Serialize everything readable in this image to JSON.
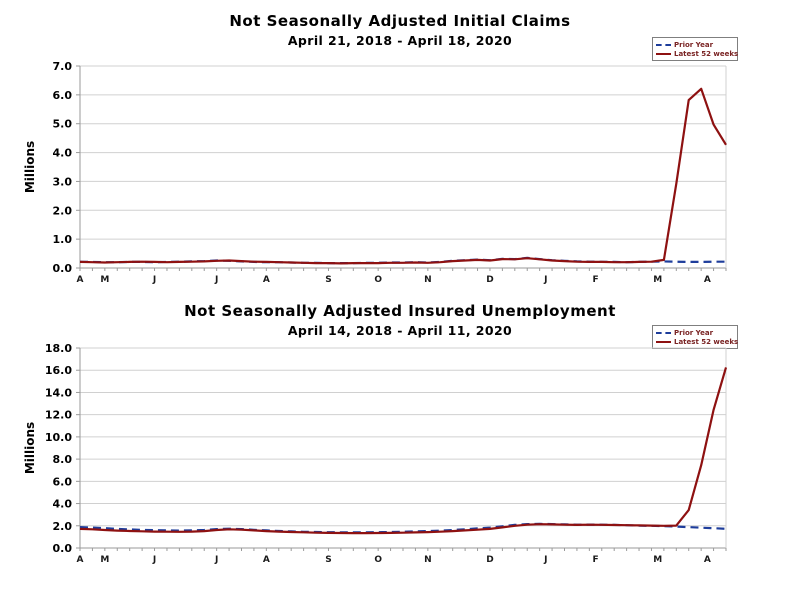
{
  "page": {
    "background": "#ffffff"
  },
  "colors": {
    "latest_line": "#8E1111",
    "prior_line": "#1E3D9B",
    "grid": "#d0d0d0",
    "axis": "#9a9a9a",
    "legend_text": "#7a2424"
  },
  "chart_data": [
    {
      "type": "line",
      "title": "Not Seasonally Adjusted Initial Claims",
      "subtitle": "April 21, 2018 - April 18, 2020",
      "ylabel": "Millions",
      "ylim": [
        0.0,
        7.0
      ],
      "ytick_step": 1.0,
      "grid": true,
      "legend_position": "top-right",
      "x_month_labels": [
        {
          "label": "A",
          "week": 0
        },
        {
          "label": "M",
          "week": 2
        },
        {
          "label": "J",
          "week": 6
        },
        {
          "label": "J",
          "week": 11
        },
        {
          "label": "A",
          "week": 15
        },
        {
          "label": "S",
          "week": 20
        },
        {
          "label": "O",
          "week": 24
        },
        {
          "label": "N",
          "week": 28
        },
        {
          "label": "D",
          "week": 33
        },
        {
          "label": "J",
          "week": 37.5
        },
        {
          "label": "F",
          "week": 41.5
        },
        {
          "label": "M",
          "week": 46.5
        },
        {
          "label": "A",
          "week": 50.5
        }
      ],
      "series": [
        {
          "name": "Prior Year",
          "style": "dashed",
          "color": "#1E3D9B",
          "values": [
            0.21,
            0.21,
            0.2,
            0.2,
            0.21,
            0.21,
            0.2,
            0.21,
            0.22,
            0.23,
            0.24,
            0.26,
            0.25,
            0.23,
            0.21,
            0.2,
            0.2,
            0.19,
            0.18,
            0.18,
            0.17,
            0.17,
            0.17,
            0.18,
            0.18,
            0.19,
            0.19,
            0.2,
            0.19,
            0.21,
            0.25,
            0.27,
            0.29,
            0.27,
            0.32,
            0.31,
            0.35,
            0.31,
            0.27,
            0.25,
            0.23,
            0.22,
            0.21,
            0.21,
            0.2,
            0.21,
            0.22,
            0.23,
            0.22,
            0.21,
            0.21,
            0.22,
            0.22
          ]
        },
        {
          "name": "Latest 52 weeks",
          "style": "solid",
          "color": "#8E1111",
          "values": [
            0.21,
            0.2,
            0.19,
            0.2,
            0.21,
            0.22,
            0.21,
            0.2,
            0.21,
            0.22,
            0.23,
            0.25,
            0.26,
            0.24,
            0.22,
            0.21,
            0.2,
            0.19,
            0.18,
            0.17,
            0.17,
            0.16,
            0.17,
            0.17,
            0.17,
            0.18,
            0.18,
            0.19,
            0.18,
            0.2,
            0.24,
            0.26,
            0.28,
            0.26,
            0.31,
            0.3,
            0.34,
            0.3,
            0.26,
            0.24,
            0.22,
            0.21,
            0.21,
            0.2,
            0.2,
            0.21,
            0.22,
            0.28,
            2.92,
            5.82,
            6.21,
            4.97,
            4.27
          ]
        }
      ]
    },
    {
      "type": "line",
      "title": "Not Seasonally Adjusted Insured Unemployment",
      "subtitle": "April 14, 2018 - April 11, 2020",
      "ylabel": "Millions",
      "ylim": [
        0.0,
        18.0
      ],
      "ytick_step": 2.0,
      "grid": true,
      "legend_position": "top-right",
      "x_month_labels": [
        {
          "label": "A",
          "week": 0
        },
        {
          "label": "M",
          "week": 2
        },
        {
          "label": "J",
          "week": 6
        },
        {
          "label": "J",
          "week": 11
        },
        {
          "label": "A",
          "week": 15
        },
        {
          "label": "S",
          "week": 20
        },
        {
          "label": "O",
          "week": 24
        },
        {
          "label": "N",
          "week": 28
        },
        {
          "label": "D",
          "week": 33
        },
        {
          "label": "J",
          "week": 37.5
        },
        {
          "label": "F",
          "week": 41.5
        },
        {
          "label": "M",
          "week": 46.5
        },
        {
          "label": "A",
          "week": 50.5
        }
      ],
      "series": [
        {
          "name": "Prior Year",
          "style": "dashed",
          "color": "#1E3D9B",
          "values": [
            1.88,
            1.84,
            1.78,
            1.72,
            1.67,
            1.63,
            1.6,
            1.58,
            1.57,
            1.58,
            1.62,
            1.7,
            1.74,
            1.7,
            1.64,
            1.58,
            1.53,
            1.49,
            1.46,
            1.44,
            1.42,
            1.41,
            1.4,
            1.41,
            1.42,
            1.44,
            1.46,
            1.49,
            1.52,
            1.56,
            1.62,
            1.68,
            1.76,
            1.84,
            1.95,
            2.08,
            2.15,
            2.17,
            2.15,
            2.12,
            2.1,
            2.11,
            2.1,
            2.08,
            2.05,
            2.02,
            2.0,
            1.97,
            1.93,
            1.88,
            1.83,
            1.78,
            1.73
          ]
        },
        {
          "name": "Latest 52 weeks",
          "style": "solid",
          "color": "#8E1111",
          "values": [
            1.72,
            1.68,
            1.62,
            1.57,
            1.53,
            1.5,
            1.48,
            1.47,
            1.46,
            1.48,
            1.52,
            1.62,
            1.68,
            1.65,
            1.58,
            1.52,
            1.48,
            1.44,
            1.41,
            1.38,
            1.36,
            1.35,
            1.34,
            1.34,
            1.35,
            1.36,
            1.38,
            1.4,
            1.43,
            1.47,
            1.52,
            1.58,
            1.65,
            1.72,
            1.85,
            2.0,
            2.1,
            2.14,
            2.12,
            2.1,
            2.08,
            2.1,
            2.09,
            2.07,
            2.05,
            2.03,
            2.02,
            2.0,
            2.02,
            3.41,
            7.45,
            12.44,
            16.25
          ]
        }
      ]
    }
  ]
}
